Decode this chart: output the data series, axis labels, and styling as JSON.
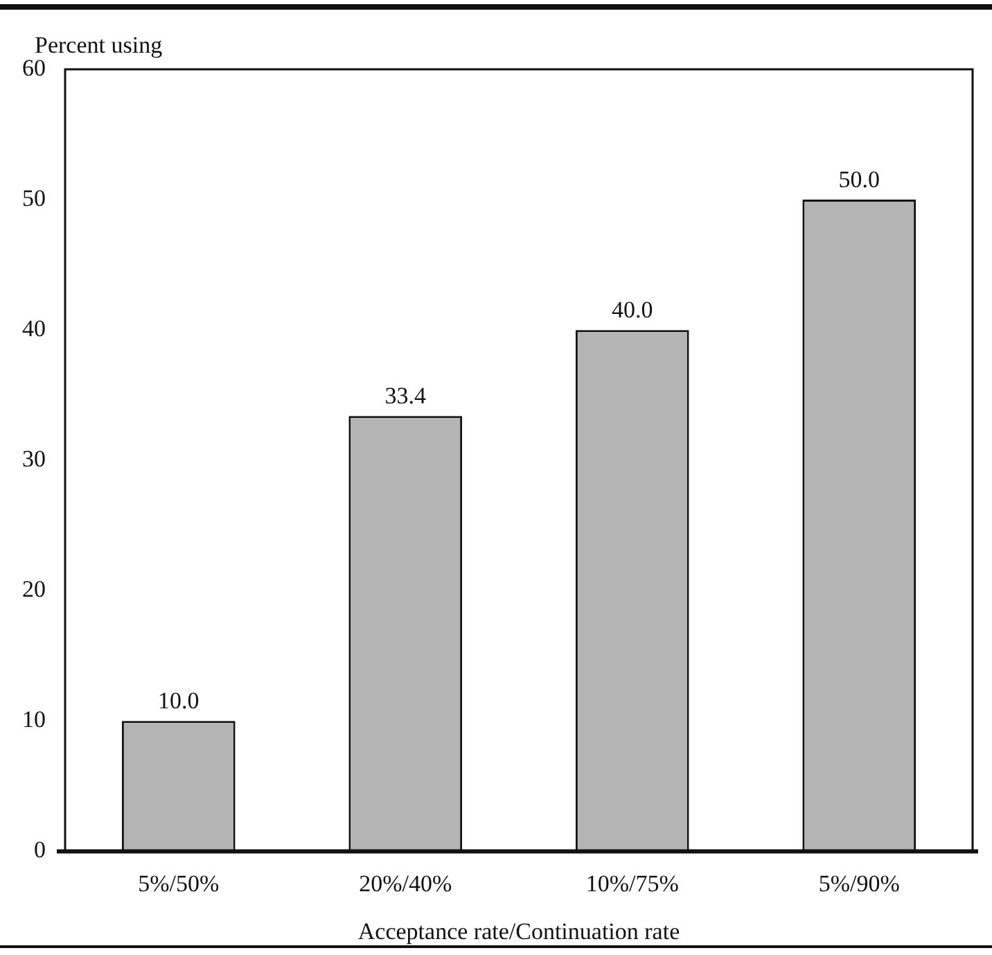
{
  "chart_data": {
    "type": "bar",
    "categories": [
      "5%/50%",
      "20%/40%",
      "10%/75%",
      "5%/90%"
    ],
    "values": [
      10,
      33.4,
      40,
      50
    ],
    "color": "#b4b4b4",
    "ylabel": "Percent using",
    "xlabel": "Acceptance rate/Continuation rate",
    "ylim": [
      0,
      60
    ],
    "yticks": [
      0,
      10,
      20,
      30,
      40,
      50,
      60
    ],
    "value_labels": [
      "10.0",
      "33.4",
      "40.0",
      "50.0"
    ],
    "grid": false,
    "legend": false
  }
}
